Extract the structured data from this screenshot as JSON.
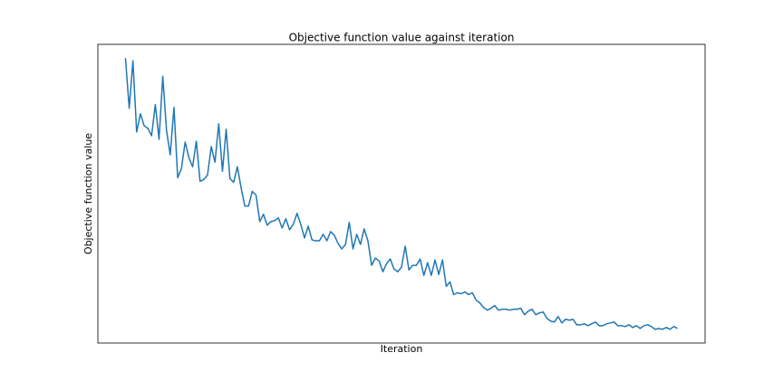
{
  "chart_data": {
    "type": "line",
    "title": "Objective function value against iteration",
    "x_label": "Iteration",
    "y_label": "Objective function value",
    "series": [
      {
        "color": "#1f77b4",
        "values": [
          313,
          258,
          310,
          232,
          252,
          239,
          236,
          228,
          262,
          224,
          293,
          234,
          207,
          259,
          182,
          192,
          221,
          204,
          194,
          222,
          178,
          180,
          185,
          216,
          199,
          241,
          189,
          235,
          181,
          177,
          194,
          171,
          151,
          151,
          167,
          163,
          134,
          142,
          130,
          134,
          135,
          138,
          127,
          137,
          125,
          131,
          143,
          131,
          116,
          129,
          114,
          113,
          113,
          120,
          113,
          123,
          119,
          110,
          104,
          109,
          133,
          104,
          120,
          109,
          126,
          113,
          86,
          94,
          91,
          79,
          88,
          93,
          82,
          79,
          84,
          107,
          81,
          86,
          86,
          93,
          75,
          89,
          75,
          92,
          76,
          92,
          63,
          68,
          54,
          56,
          55,
          57,
          54,
          56,
          48,
          45,
          40,
          37,
          39,
          42,
          37,
          38,
          38,
          37,
          38,
          38,
          39,
          32,
          36,
          38,
          32,
          34,
          35,
          28,
          25,
          24,
          30,
          23,
          27,
          26,
          27,
          21,
          21,
          22,
          20,
          22,
          24,
          20,
          20,
          22,
          23,
          24,
          20,
          20,
          19,
          21,
          18,
          20,
          17,
          20,
          21,
          19,
          16,
          17,
          16,
          18,
          16,
          19,
          17
        ]
      }
    ],
    "xlim": [
      -7.4,
      155.4
    ],
    "ylim": [
      1,
      328
    ]
  }
}
